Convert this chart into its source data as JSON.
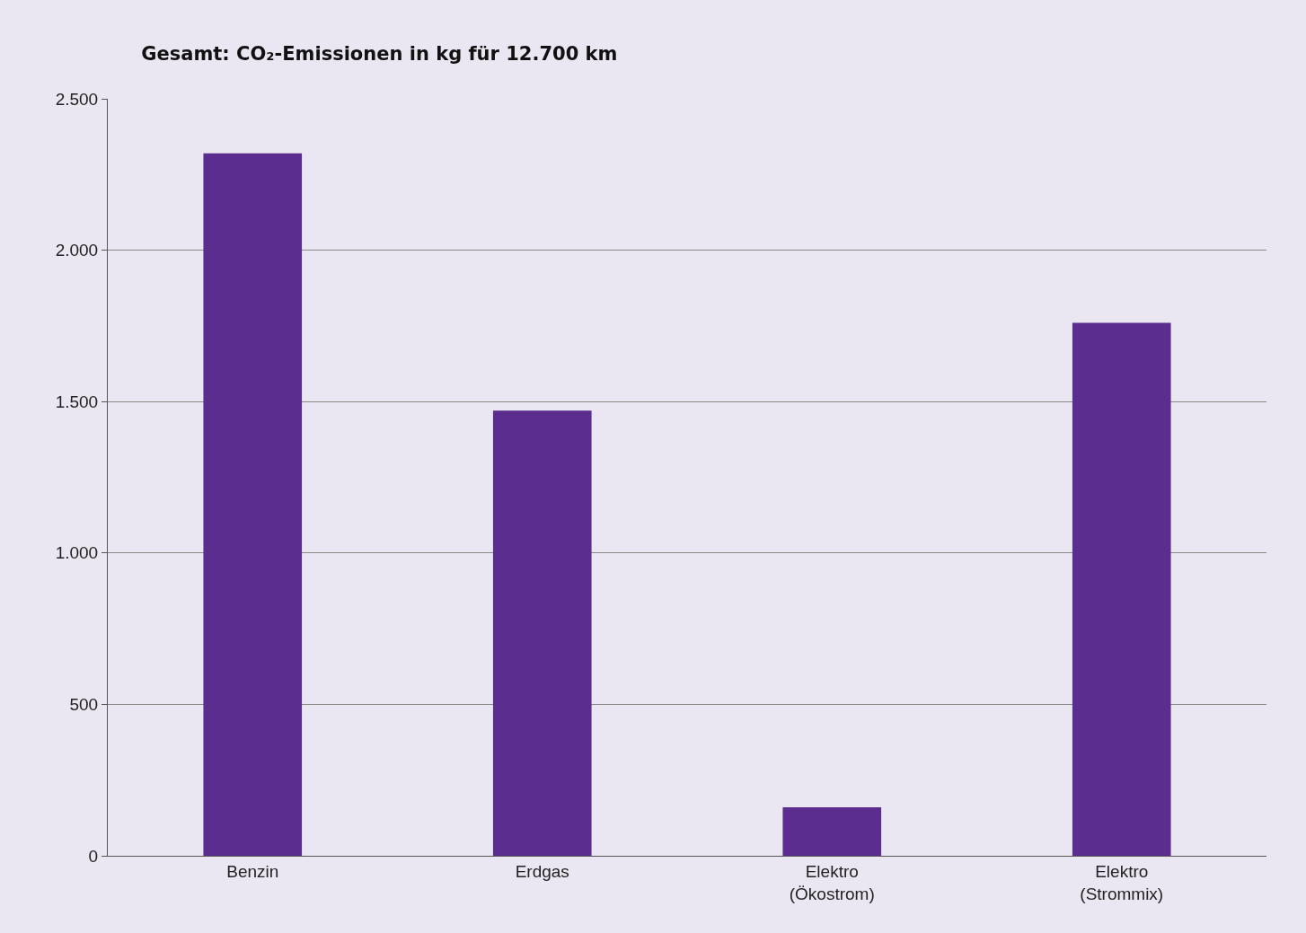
{
  "chart_data": {
    "type": "bar",
    "title": "Gesamt: CO₂-Emissionen in kg für 12.700 km",
    "categories": [
      "Benzin",
      "Erdgas",
      "Elektro\n(Ökostrom)",
      "Elektro\n(Strommix)"
    ],
    "values": [
      2320,
      1470,
      160,
      1760
    ],
    "color": "#5b2d8e",
    "ylim": [
      0,
      2500
    ],
    "yticks": [
      0,
      500,
      {
        "value": 1000,
        "label": "1.000"
      },
      {
        "value": 1500,
        "label": "1.500"
      },
      {
        "value": 2000,
        "label": "2.000"
      },
      {
        "value": 2500,
        "label": "2.500"
      }
    ],
    "grid": "y"
  }
}
